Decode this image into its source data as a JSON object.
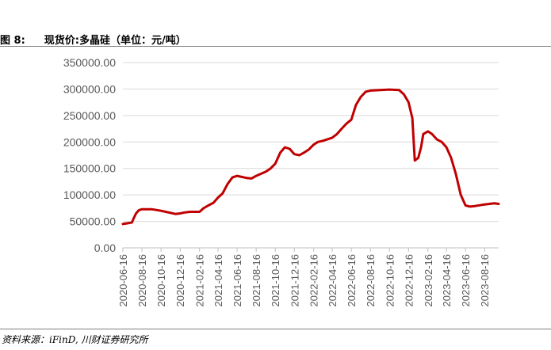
{
  "figure": {
    "label": "图 8:",
    "title": "现货价:多晶硅（单位：元/吨）"
  },
  "source": "资料来源：iFinD, 川财证券研究所",
  "chart_data": {
    "type": "line",
    "title": "现货价:多晶硅（单位：元/吨）",
    "xlabel": "",
    "ylabel": "",
    "ylim": [
      0,
      350000
    ],
    "yticks": [
      0,
      50000,
      100000,
      150000,
      200000,
      250000,
      300000,
      350000
    ],
    "ytick_labels": [
      "0.00",
      "50000.00",
      "100000.00",
      "150000.00",
      "200000.00",
      "250000.00",
      "300000.00",
      "350000.00"
    ],
    "xlim": [
      "2020-06-16",
      "2023-09-30"
    ],
    "xticks": [
      "2020-06-16",
      "2020-08-16",
      "2020-10-16",
      "2020-12-16",
      "2021-02-16",
      "2021-04-16",
      "2021-06-16",
      "2021-08-16",
      "2021-10-16",
      "2021-12-16",
      "2022-02-16",
      "2022-04-16",
      "2022-06-16",
      "2022-08-16",
      "2022-10-16",
      "2022-12-16",
      "2023-02-16",
      "2023-04-16",
      "2023-06-16",
      "2023-08-16"
    ],
    "grid": true,
    "legend": "none",
    "series": [
      {
        "color": "#c00000",
        "points": [
          [
            "2020-06-16",
            45000
          ],
          [
            "2020-07-06",
            47000
          ],
          [
            "2020-07-15",
            48000
          ],
          [
            "2020-07-20",
            55000
          ],
          [
            "2020-07-28",
            65000
          ],
          [
            "2020-08-06",
            71000
          ],
          [
            "2020-08-16",
            73000
          ],
          [
            "2020-09-16",
            73000
          ],
          [
            "2020-10-16",
            70000
          ],
          [
            "2020-11-16",
            66000
          ],
          [
            "2020-12-01",
            64000
          ],
          [
            "2020-12-16",
            65000
          ],
          [
            "2021-01-01",
            67000
          ],
          [
            "2021-01-16",
            68000
          ],
          [
            "2021-02-16",
            68000
          ],
          [
            "2021-03-01",
            75000
          ],
          [
            "2021-03-16",
            80000
          ],
          [
            "2021-04-01",
            85000
          ],
          [
            "2021-04-16",
            95000
          ],
          [
            "2021-05-01",
            103000
          ],
          [
            "2021-05-16",
            120000
          ],
          [
            "2021-06-01",
            133000
          ],
          [
            "2021-06-16",
            136000
          ],
          [
            "2021-07-16",
            132000
          ],
          [
            "2021-08-01",
            131000
          ],
          [
            "2021-08-16",
            136000
          ],
          [
            "2021-09-01",
            140000
          ],
          [
            "2021-09-16",
            144000
          ],
          [
            "2021-10-01",
            150000
          ],
          [
            "2021-10-16",
            159000
          ],
          [
            "2021-11-01",
            180000
          ],
          [
            "2021-11-16",
            190000
          ],
          [
            "2021-12-01",
            187000
          ],
          [
            "2021-12-16",
            177000
          ],
          [
            "2022-01-01",
            175000
          ],
          [
            "2022-01-16",
            180000
          ],
          [
            "2022-02-01",
            186000
          ],
          [
            "2022-02-16",
            195000
          ],
          [
            "2022-03-01",
            200000
          ],
          [
            "2022-03-16",
            202000
          ],
          [
            "2022-04-01",
            205000
          ],
          [
            "2022-04-16",
            208000
          ],
          [
            "2022-05-01",
            215000
          ],
          [
            "2022-05-16",
            225000
          ],
          [
            "2022-06-01",
            235000
          ],
          [
            "2022-06-16",
            242000
          ],
          [
            "2022-07-01",
            270000
          ],
          [
            "2022-07-16",
            285000
          ],
          [
            "2022-08-01",
            295000
          ],
          [
            "2022-08-16",
            297000
          ],
          [
            "2022-09-16",
            298000
          ],
          [
            "2022-10-16",
            299000
          ],
          [
            "2022-11-16",
            298000
          ],
          [
            "2022-12-01",
            290000
          ],
          [
            "2022-12-16",
            275000
          ],
          [
            "2022-12-28",
            245000
          ],
          [
            "2023-01-05",
            165000
          ],
          [
            "2023-01-16",
            170000
          ],
          [
            "2023-01-25",
            190000
          ],
          [
            "2023-02-01",
            215000
          ],
          [
            "2023-02-16",
            220000
          ],
          [
            "2023-03-01",
            215000
          ],
          [
            "2023-03-16",
            205000
          ],
          [
            "2023-04-01",
            200000
          ],
          [
            "2023-04-16",
            190000
          ],
          [
            "2023-05-01",
            170000
          ],
          [
            "2023-05-16",
            140000
          ],
          [
            "2023-06-01",
            100000
          ],
          [
            "2023-06-16",
            80000
          ],
          [
            "2023-07-01",
            78000
          ],
          [
            "2023-07-16",
            79000
          ],
          [
            "2023-08-16",
            82000
          ],
          [
            "2023-09-16",
            84000
          ],
          [
            "2023-09-30",
            83000
          ]
        ]
      }
    ]
  }
}
